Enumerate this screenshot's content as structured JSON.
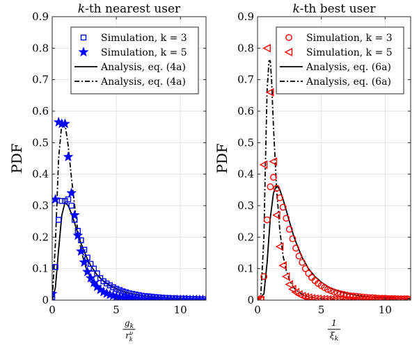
{
  "chart_data": [
    {
      "type": "line",
      "title_prefix": "k",
      "title_suffix": "-th nearest user",
      "ylabel": "PDF",
      "xlabel_num": "g",
      "xlabel_num_sub": "k",
      "xlabel_den": "r",
      "xlabel_den_sub": "k",
      "xlabel_den_sup": "υ",
      "xlim": [
        0,
        12
      ],
      "ylim": [
        0,
        0.9
      ],
      "xticks": [
        0,
        5,
        10
      ],
      "xtick_labels": [
        "0",
        "5",
        "10"
      ],
      "yticks": [
        0,
        0.1,
        0.2,
        0.3,
        0.4,
        0.5,
        0.6,
        0.7,
        0.8,
        0.9
      ],
      "ytick_labels": [
        "0",
        "0.1",
        "0.2",
        "0.3",
        "0.4",
        "0.5",
        "0.6",
        "0.7",
        "0.8",
        "0.9"
      ],
      "grid": true,
      "legend_position": "top-right",
      "color": "#0000ff",
      "series": [
        {
          "name": "Simulation, k = 3",
          "style": "square-marker",
          "x": [
            0,
            0.25,
            0.5,
            0.75,
            1.0,
            1.25,
            1.5,
            1.75,
            2.0,
            2.25,
            2.5,
            2.75,
            3.0,
            3.25,
            3.5,
            3.75,
            4.0,
            4.25,
            4.5,
            4.75,
            5.0,
            5.25,
            5.5,
            5.75,
            6.0,
            6.25,
            6.5,
            6.75,
            7.0,
            7.25,
            7.5,
            7.75,
            8.0,
            8.25,
            8.5,
            8.75,
            9.0,
            9.25,
            9.5,
            9.75,
            10.0,
            10.25,
            10.5,
            10.75,
            11.0,
            11.25,
            11.5,
            11.75
          ],
          "y": [
            0.01,
            0.105,
            0.255,
            0.315,
            0.315,
            0.32,
            0.3,
            0.255,
            0.22,
            0.19,
            0.16,
            0.135,
            0.115,
            0.1,
            0.085,
            0.07,
            0.06,
            0.053,
            0.047,
            0.041,
            0.036,
            0.032,
            0.028,
            0.025,
            0.022,
            0.02,
            0.018,
            0.016,
            0.014,
            0.013,
            0.012,
            0.011,
            0.01,
            0.009,
            0.008,
            0.007,
            0.007,
            0.006,
            0.006,
            0.005,
            0.005,
            0.005,
            0.004,
            0.004,
            0.004,
            0.003,
            0.003,
            0.003
          ]
        },
        {
          "name": "Simulation, k = 5",
          "style": "star-marker",
          "x": [
            0,
            0.25,
            0.5,
            0.75,
            1.0,
            1.25,
            1.5,
            1.75,
            2.0,
            2.25,
            2.5,
            2.75,
            3.0,
            3.25,
            3.5,
            3.75,
            4.0,
            4.25,
            4.5,
            4.75,
            5.0,
            5.25,
            5.5,
            5.75,
            6.0,
            6.25,
            6.5,
            6.75,
            7.0,
            7.25,
            7.5,
            7.75,
            8.0,
            8.25,
            8.5,
            8.75,
            9.0,
            9.25,
            9.5,
            9.75,
            10.0,
            10.25,
            10.5,
            10.75,
            11.0,
            11.25,
            11.5,
            11.75
          ],
          "y": [
            0.02,
            0.32,
            0.565,
            0.56,
            0.56,
            0.455,
            0.34,
            0.27,
            0.205,
            0.155,
            0.12,
            0.09,
            0.07,
            0.055,
            0.042,
            0.033,
            0.026,
            0.021,
            0.017,
            0.014,
            0.011,
            0.009,
            0.008,
            0.007,
            0.006,
            0.005,
            0.004,
            0.004,
            0.003,
            0.003,
            0.003,
            0.002,
            0.002,
            0.002,
            0.002,
            0.002,
            0.001,
            0.001,
            0.001,
            0.001,
            0.001,
            0.001,
            0.001,
            0.001,
            0.001,
            0.001,
            0.001,
            0.001
          ]
        },
        {
          "name": "Analysis, eq. (4a)",
          "style": "solid",
          "x": [
            0,
            0.25,
            0.5,
            0.75,
            1.0,
            1.25,
            1.5,
            1.75,
            2.0,
            2.25,
            2.5,
            2.75,
            3.0,
            3.5,
            4.0,
            4.5,
            5.0,
            5.5,
            6.0,
            7.0,
            8.0,
            9.0,
            10.0,
            11.0,
            12.0
          ],
          "y": [
            0,
            0.04,
            0.16,
            0.27,
            0.31,
            0.3,
            0.275,
            0.245,
            0.21,
            0.18,
            0.155,
            0.13,
            0.11,
            0.08,
            0.06,
            0.047,
            0.036,
            0.028,
            0.022,
            0.014,
            0.01,
            0.007,
            0.005,
            0.004,
            0.003
          ]
        },
        {
          "name": "Analysis, eq. (4a)",
          "style": "dashdot",
          "x": [
            0,
            0.25,
            0.5,
            0.75,
            1.0,
            1.25,
            1.5,
            1.75,
            2.0,
            2.25,
            2.5,
            2.75,
            3.0,
            3.5,
            4.0,
            4.5,
            5.0,
            6.0,
            7.0,
            8.0,
            9.0,
            10.0,
            12.0
          ],
          "y": [
            0,
            0.18,
            0.45,
            0.56,
            0.56,
            0.49,
            0.39,
            0.3,
            0.22,
            0.16,
            0.12,
            0.09,
            0.07,
            0.045,
            0.028,
            0.019,
            0.012,
            0.006,
            0.003,
            0.002,
            0.001,
            0.001,
            0.001
          ]
        }
      ]
    },
    {
      "type": "line",
      "title_prefix": "k",
      "title_suffix": "-th best user",
      "ylabel": "PDF",
      "xlabel_num": "1",
      "xlabel_den": "ξ",
      "xlabel_den_sub": "k",
      "xlim": [
        0,
        12
      ],
      "ylim": [
        0,
        0.9
      ],
      "xticks": [
        0,
        5,
        10
      ],
      "xtick_labels": [
        "0",
        "5",
        "10"
      ],
      "yticks": [
        0,
        0.1,
        0.2,
        0.3,
        0.4,
        0.5,
        0.6,
        0.7,
        0.8,
        0.9
      ],
      "ytick_labels": [
        "0",
        "0.1",
        "0.2",
        "0.3",
        "0.4",
        "0.5",
        "0.6",
        "0.7",
        "0.8",
        "0.9"
      ],
      "grid": true,
      "legend_position": "top-right",
      "color": "#ff0000",
      "series": [
        {
          "name": "Simulation, k = 3",
          "style": "circle-marker",
          "x": [
            0,
            0.25,
            0.5,
            0.75,
            1.0,
            1.25,
            1.5,
            1.75,
            2.0,
            2.25,
            2.5,
            2.75,
            3.0,
            3.25,
            3.5,
            3.75,
            4.0,
            4.25,
            4.5,
            4.75,
            5.0,
            5.25,
            5.5,
            5.75,
            6.0,
            6.25,
            6.5,
            6.75,
            7.0,
            7.25,
            7.5,
            7.75,
            8.0,
            8.25,
            8.5,
            8.75,
            9.0,
            9.25,
            9.5,
            9.75,
            10.0,
            10.25,
            10.5,
            10.75,
            11.0,
            11.25,
            11.5,
            11.75
          ],
          "y": [
            0,
            0.005,
            0.075,
            0.255,
            0.36,
            0.39,
            0.355,
            0.325,
            0.295,
            0.26,
            0.225,
            0.195,
            0.165,
            0.14,
            0.12,
            0.1,
            0.085,
            0.072,
            0.062,
            0.053,
            0.046,
            0.04,
            0.034,
            0.03,
            0.026,
            0.023,
            0.02,
            0.018,
            0.016,
            0.014,
            0.013,
            0.012,
            0.011,
            0.01,
            0.009,
            0.008,
            0.008,
            0.007,
            0.006,
            0.006,
            0.006,
            0.005,
            0.005,
            0.005,
            0.004,
            0.004,
            0.004,
            0.004
          ]
        },
        {
          "name": "Simulation, k = 5",
          "style": "triangle-marker",
          "x": [
            0,
            0.25,
            0.5,
            0.75,
            1.0,
            1.25,
            1.5,
            1.75,
            2.0,
            2.25,
            2.5,
            2.75,
            3.0,
            3.25,
            3.5,
            3.75,
            4.0,
            4.25,
            4.5,
            4.75,
            5.0,
            5.25,
            5.5,
            5.75,
            6.0,
            6.25,
            6.5,
            6.75,
            7.0,
            7.25,
            7.5,
            7.75,
            8.0,
            8.25,
            8.5,
            8.75,
            9.0,
            9.25,
            9.5,
            9.75,
            10.0,
            10.25,
            10.5,
            10.75,
            11.0,
            11.25,
            11.5,
            11.75
          ],
          "y": [
            0,
            0.0,
            0.43,
            0.8,
            0.66,
            0.44,
            0.27,
            0.17,
            0.11,
            0.075,
            0.05,
            0.035,
            0.025,
            0.018,
            0.013,
            0.01,
            0.008,
            0.006,
            0.005,
            0.004,
            0.003,
            0.003,
            0.002,
            0.002,
            0.002,
            0.002,
            0.002,
            0.001,
            0.001,
            0.001,
            0.001,
            0.001,
            0.001,
            0.001,
            0.001,
            0.001,
            0.001,
            0.001,
            0.001,
            0.001,
            0.001,
            0.001,
            0.001,
            0.001,
            0.001,
            0.001,
            0.001,
            0.001
          ]
        },
        {
          "name": "Analysis, eq. (6a)",
          "style": "solid",
          "x": [
            0,
            0.5,
            0.75,
            1.0,
            1.25,
            1.5,
            1.75,
            2.0,
            2.25,
            2.5,
            2.75,
            3.0,
            3.5,
            4.0,
            4.5,
            5.0,
            5.5,
            6.0,
            7.0,
            8.0,
            9.0,
            10.0,
            11.0,
            12.0
          ],
          "y": [
            0,
            0.02,
            0.12,
            0.26,
            0.34,
            0.365,
            0.35,
            0.32,
            0.285,
            0.25,
            0.215,
            0.185,
            0.135,
            0.1,
            0.075,
            0.057,
            0.043,
            0.034,
            0.021,
            0.014,
            0.009,
            0.007,
            0.005,
            0.004
          ]
        },
        {
          "name": "Analysis, eq. (6a)",
          "style": "dashdot",
          "x": [
            0,
            0.25,
            0.5,
            0.6,
            0.75,
            0.9,
            1.0,
            1.1,
            1.25,
            1.5,
            1.75,
            2.0,
            2.25,
            2.5,
            2.75,
            3.0,
            3.5,
            4.0,
            4.5,
            5.0,
            6.0,
            8.0,
            12.0
          ],
          "y": [
            0,
            0.01,
            0.2,
            0.4,
            0.67,
            0.76,
            0.76,
            0.7,
            0.55,
            0.35,
            0.22,
            0.14,
            0.095,
            0.065,
            0.045,
            0.032,
            0.018,
            0.011,
            0.007,
            0.005,
            0.003,
            0.001,
            0.0
          ]
        }
      ]
    }
  ]
}
